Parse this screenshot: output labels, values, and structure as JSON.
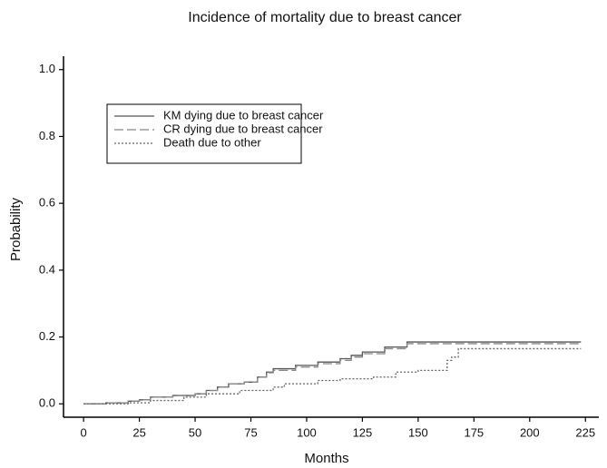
{
  "chart_data": {
    "type": "step",
    "title": "Incidence of mortality due to breast cancer",
    "x_label": "Months",
    "y_label": "Probability",
    "xlim": [
      -9,
      231
    ],
    "ylim": [
      -0.04,
      1.04
    ],
    "xticks": [
      0,
      25,
      50,
      75,
      100,
      125,
      150,
      175,
      200,
      225
    ],
    "yticks": [
      {
        "value": 0,
        "label": "0.0"
      },
      0.2,
      0.4,
      0.6,
      0.8,
      {
        "value": 1,
        "label": "1.0"
      }
    ],
    "legend_position": "upper left",
    "series": [
      {
        "name": "KM dying due to breast cancer",
        "color": "#555555",
        "dash": "solid",
        "x": [
          0,
          10,
          20,
          25,
          30,
          40,
          50,
          55,
          60,
          65,
          72,
          78,
          82,
          85,
          95,
          105,
          115,
          120,
          125,
          135,
          145,
          223
        ],
        "values": [
          0,
          0.003,
          0.008,
          0.012,
          0.02,
          0.025,
          0.03,
          0.04,
          0.05,
          0.06,
          0.065,
          0.08,
          0.095,
          0.105,
          0.115,
          0.125,
          0.135,
          0.145,
          0.155,
          0.17,
          0.185,
          0.185
        ]
      },
      {
        "name": "CR dying due to breast cancer",
        "color": "#888888",
        "dash": "dashed",
        "x": [
          0,
          10,
          20,
          25,
          30,
          40,
          50,
          55,
          60,
          65,
          72,
          78,
          82,
          85,
          95,
          105,
          115,
          120,
          125,
          135,
          145,
          223
        ],
        "values": [
          0,
          0.003,
          0.008,
          0.012,
          0.02,
          0.025,
          0.03,
          0.04,
          0.05,
          0.06,
          0.065,
          0.08,
          0.093,
          0.1,
          0.11,
          0.12,
          0.13,
          0.14,
          0.15,
          0.165,
          0.18,
          0.18
        ]
      },
      {
        "name": "Death due to other",
        "color": "#666666",
        "dash": "dotted",
        "x": [
          0,
          20,
          30,
          45,
          55,
          70,
          85,
          90,
          105,
          115,
          130,
          140,
          150,
          163,
          165,
          168,
          223
        ],
        "values": [
          0,
          0.003,
          0.01,
          0.02,
          0.03,
          0.04,
          0.05,
          0.06,
          0.07,
          0.075,
          0.08,
          0.095,
          0.1,
          0.13,
          0.14,
          0.165,
          0.165
        ]
      }
    ]
  }
}
